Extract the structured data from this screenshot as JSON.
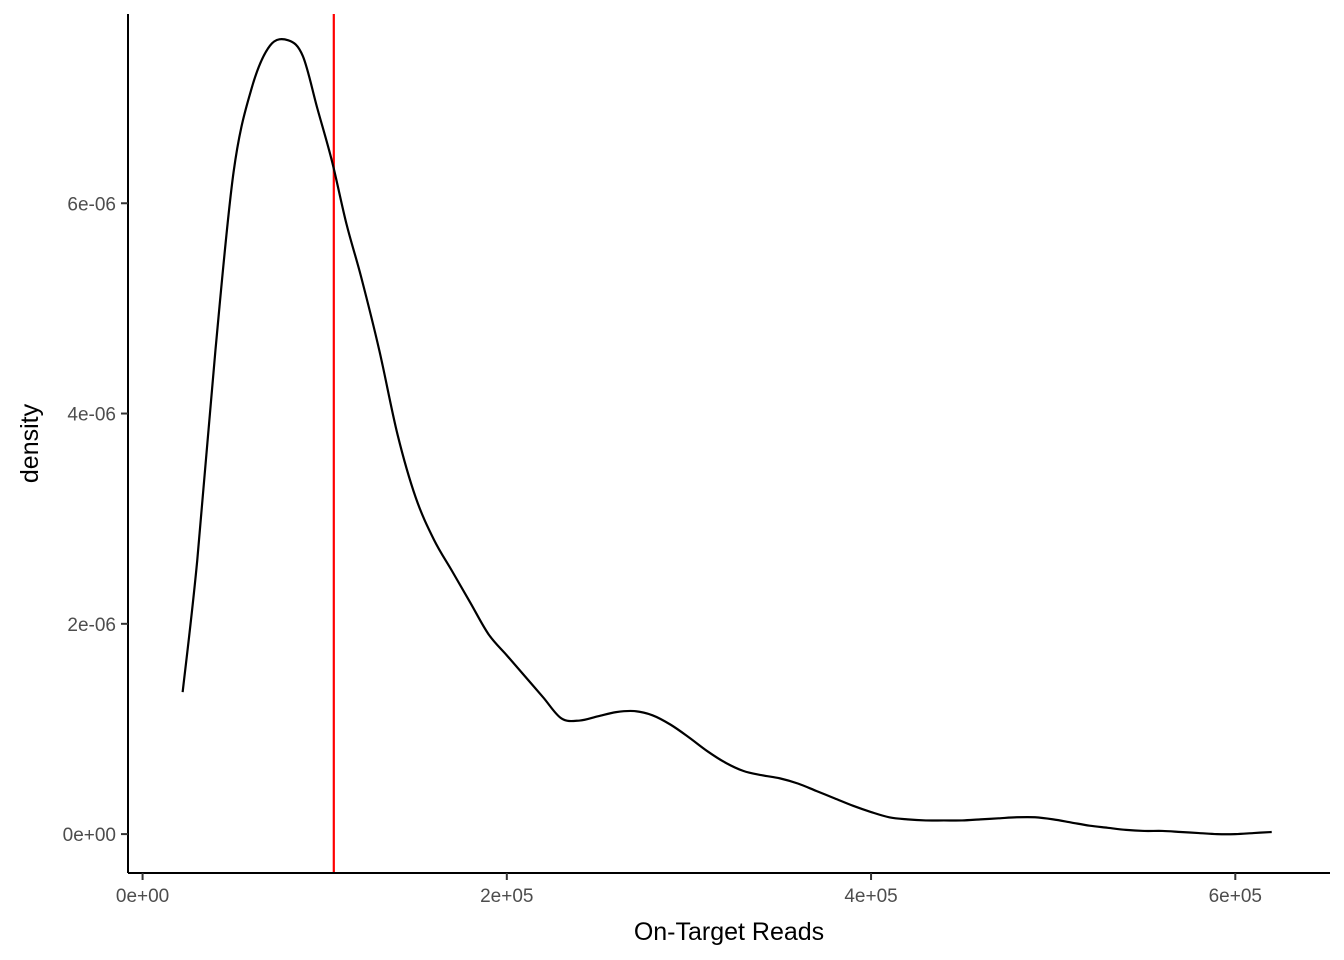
{
  "chart_data": {
    "type": "line",
    "title": "",
    "xlabel": "On-Target Reads",
    "ylabel": "density",
    "xlim": [
      -8000,
      652000
    ],
    "ylim": [
      -3.7e-07,
      7.8e-06
    ],
    "x_ticks": [
      {
        "value": 0,
        "label": "0e+00"
      },
      {
        "value": 200000,
        "label": "2e+05"
      },
      {
        "value": 400000,
        "label": "4e+05"
      },
      {
        "value": 600000,
        "label": "6e+05"
      }
    ],
    "y_ticks": [
      {
        "value": 0,
        "label": "0e+00"
      },
      {
        "value": 2e-06,
        "label": "2e-06"
      },
      {
        "value": 4e-06,
        "label": "4e-06"
      },
      {
        "value": 6e-06,
        "label": "6e-06"
      }
    ],
    "grid": false,
    "legend": "none",
    "series": [
      {
        "color": "#000000",
        "x": [
          22000,
          30000,
          40000,
          50000,
          60000,
          70000,
          80000,
          88000,
          96000,
          104000,
          112000,
          120000,
          130000,
          140000,
          150000,
          160000,
          170000,
          180000,
          190000,
          200000,
          210000,
          220000,
          230000,
          240000,
          250000,
          260000,
          270000,
          280000,
          290000,
          300000,
          310000,
          320000,
          330000,
          340000,
          350000,
          360000,
          370000,
          380000,
          390000,
          400000,
          410000,
          420000,
          430000,
          440000,
          450000,
          460000,
          470000,
          480000,
          490000,
          500000,
          510000,
          520000,
          530000,
          540000,
          550000,
          560000,
          570000,
          580000,
          590000,
          600000,
          610000,
          620000
        ],
        "y": [
          1.35e-06,
          2.6e-06,
          4.6e-06,
          6.3e-06,
          7.1e-06,
          7.5e-06,
          7.55e-06,
          7.4e-06,
          6.9e-06,
          6.4e-06,
          5.8e-06,
          5.3e-06,
          4.6e-06,
          3.8e-06,
          3.2e-06,
          2.8e-06,
          2.5e-06,
          2.2e-06,
          1.9e-06,
          1.7e-06,
          1.5e-06,
          1.3e-06,
          1.1e-06,
          1.08e-06,
          1.12e-06,
          1.16e-06,
          1.17e-06,
          1.13e-06,
          1.04e-06,
          9.2e-07,
          7.9e-07,
          6.8e-07,
          6e-07,
          5.6e-07,
          5.3e-07,
          4.8e-07,
          4.1e-07,
          3.4e-07,
          2.7e-07,
          2.1e-07,
          1.6e-07,
          1.4e-07,
          1.3e-07,
          1.3e-07,
          1.3e-07,
          1.4e-07,
          1.5e-07,
          1.6e-07,
          1.6e-07,
          1.4e-07,
          1.1e-07,
          8e-08,
          6e-08,
          4e-08,
          3e-08,
          3e-08,
          2e-08,
          1e-08,
          0.0,
          0.0,
          1e-08,
          2e-08
        ]
      }
    ],
    "reference_lines": [
      {
        "orientation": "vertical",
        "x": 105000,
        "color": "#ff0000"
      }
    ]
  }
}
